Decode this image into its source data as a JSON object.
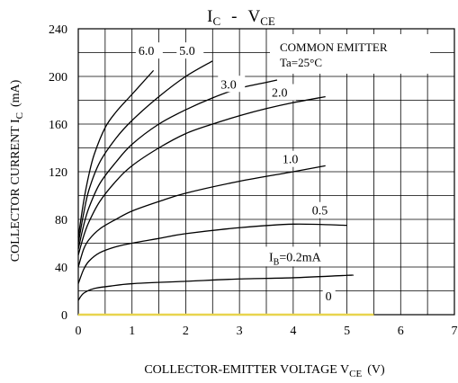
{
  "chart_data": {
    "type": "line",
    "title": {
      "main": "I",
      "main_sub": "C",
      "sep": "-",
      "second": "V",
      "second_sub": "CE"
    },
    "xlabel": {
      "main": "COLLECTOR-EMITTER VOLTAGE V",
      "sub": "CE",
      "unit": "(V)"
    },
    "ylabel": {
      "main": "COLLECTOR CURRENT I",
      "sub": "C",
      "unit": "(mA)"
    },
    "xlim": [
      0,
      7
    ],
    "ylim": [
      0,
      240
    ],
    "xticks": [
      0,
      1,
      2,
      3,
      4,
      5,
      6,
      7
    ],
    "yticks": [
      0,
      40,
      80,
      120,
      160,
      200,
      240
    ],
    "grid": true,
    "annotation": {
      "line1": "COMMON EMITTER",
      "line2": "Ta=25°C"
    },
    "series": [
      {
        "name": "0",
        "label": "0",
        "label_at": [
          4.6,
          12
        ],
        "x": [
          0,
          5.5
        ],
        "y": [
          0,
          0
        ]
      },
      {
        "name": "0.2",
        "label_pre": "I",
        "label_sub": "B",
        "label_post": "=0.2mA",
        "label_at": [
          3.55,
          45
        ],
        "x": [
          0,
          0.1,
          0.3,
          0.6,
          1,
          2,
          3,
          4,
          5,
          5.1
        ],
        "y": [
          12,
          18,
          22,
          24,
          26,
          28,
          30,
          31,
          33,
          33
        ]
      },
      {
        "name": "0.5",
        "label": "0.5",
        "label_at": [
          4.35,
          84
        ],
        "x": [
          0,
          0.1,
          0.2,
          0.4,
          0.7,
          1,
          1.5,
          2,
          3,
          4,
          5
        ],
        "y": [
          26,
          38,
          45,
          52,
          57,
          60,
          64,
          68,
          73,
          76,
          75
        ]
      },
      {
        "name": "1.0",
        "label": "1.0",
        "label_at": [
          3.8,
          127
        ],
        "x": [
          0,
          0.1,
          0.2,
          0.4,
          0.7,
          1,
          1.5,
          2,
          3,
          4,
          4.6
        ],
        "y": [
          40,
          55,
          63,
          72,
          80,
          87,
          95,
          102,
          112,
          120,
          125
        ]
      },
      {
        "name": "2.0",
        "label": "2.0",
        "label_at": [
          3.6,
          183
        ],
        "x": [
          0,
          0.1,
          0.2,
          0.4,
          0.7,
          1,
          1.5,
          2,
          2.5,
          3,
          3.5,
          4,
          4.6
        ],
        "y": [
          50,
          66,
          78,
          95,
          112,
          125,
          140,
          152,
          160,
          167,
          173,
          178,
          183
        ]
      },
      {
        "name": "3.0",
        "label": "3.0",
        "label_at": [
          2.65,
          190
        ],
        "x": [
          0,
          0.1,
          0.2,
          0.4,
          0.7,
          1,
          1.5,
          2,
          2.5,
          3,
          3.5,
          3.7
        ],
        "y": [
          55,
          75,
          90,
          110,
          128,
          143,
          160,
          172,
          182,
          190,
          195,
          197
        ]
      },
      {
        "name": "5.0",
        "label": "5.0",
        "label_at": [
          1.88,
          218
        ],
        "x": [
          0,
          0.1,
          0.2,
          0.4,
          0.7,
          1,
          1.5,
          2,
          2.5
        ],
        "y": [
          60,
          85,
          105,
          128,
          148,
          163,
          183,
          200,
          213
        ]
      },
      {
        "name": "6.0",
        "label": "6.0",
        "label_at": [
          1.12,
          218
        ],
        "x": [
          0,
          0.1,
          0.2,
          0.3,
          0.5,
          0.7,
          1,
          1.3,
          1.4
        ],
        "y": [
          65,
          95,
          118,
          135,
          157,
          170,
          185,
          200,
          205
        ]
      }
    ]
  }
}
